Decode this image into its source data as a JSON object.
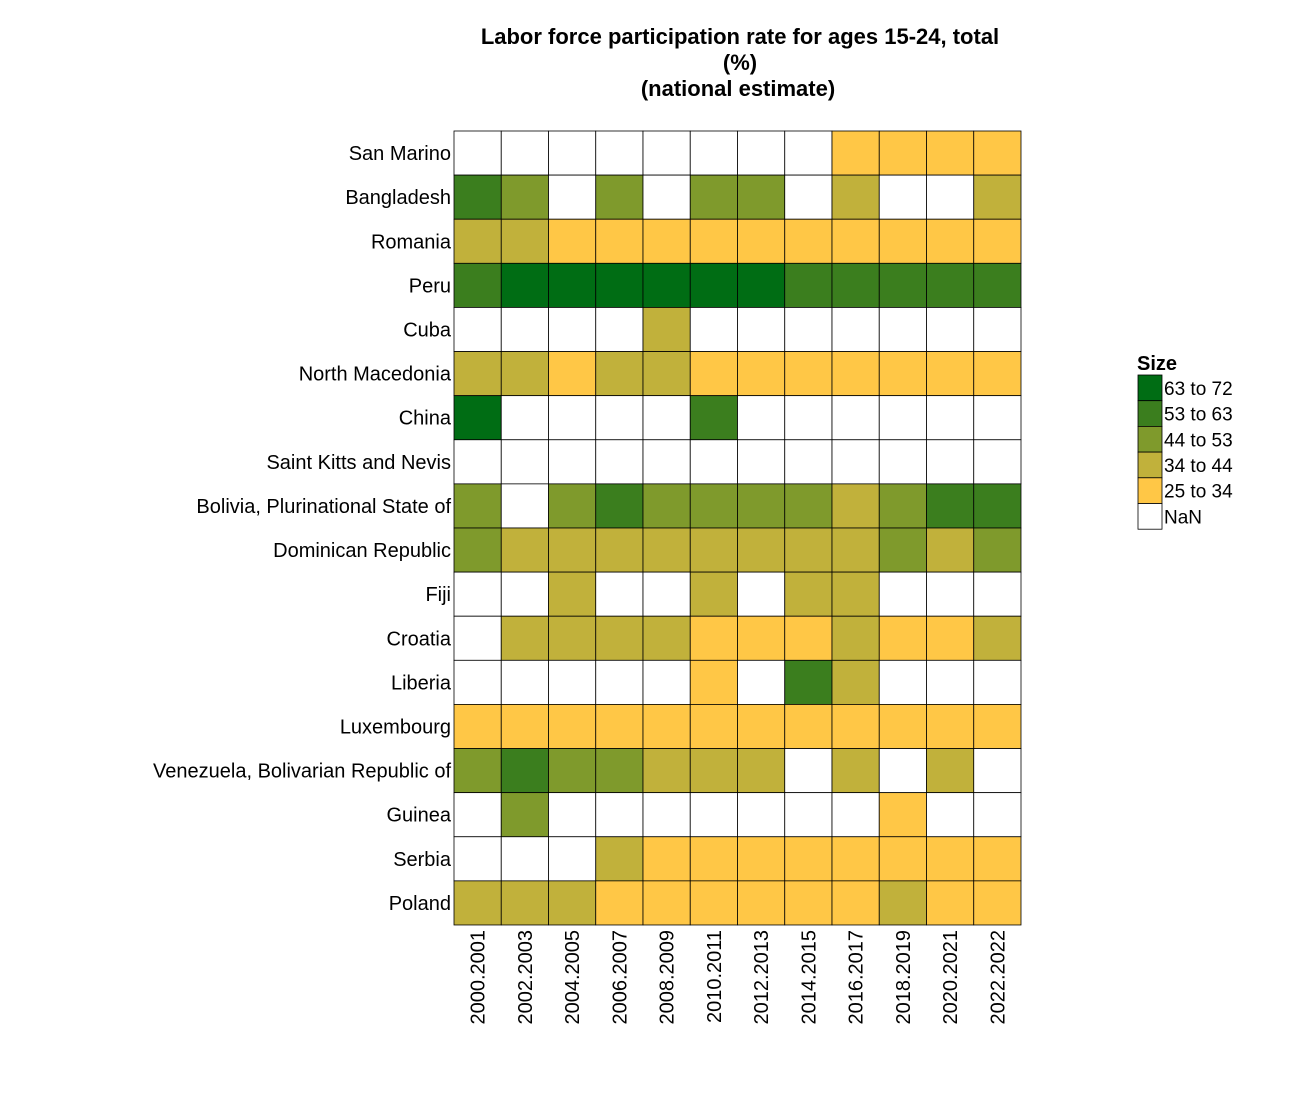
{
  "chart_data": {
    "type": "heatmap",
    "title_lines": [
      "Labor force participation rate for ages 15-24, total",
      "(%)",
      "(national estimate)"
    ],
    "x_categories": [
      "2000.2001",
      "2002.2003",
      "2004.2005",
      "2006.2007",
      "2008.2009",
      "2010.2011",
      "2012.2013",
      "2014.2015",
      "2016.2017",
      "2018.2019",
      "2020.2021",
      "2022.2022"
    ],
    "y_categories": [
      "San Marino",
      "Bangladesh",
      "Romania",
      "Peru",
      "Cuba",
      "North Macedonia",
      "China",
      "Saint Kitts and Nevis",
      "Bolivia, Plurinational State of",
      "Dominican Republic",
      "Fiji",
      "Croatia",
      "Liberia",
      "Luxembourg",
      "Venezuela, Bolivarian Republic of",
      "Guinea",
      "Serbia",
      "Poland"
    ],
    "legend": {
      "title": "Size",
      "bins": [
        {
          "label": "63 to 72",
          "color": "#006d14"
        },
        {
          "label": "53 to 63",
          "color": "#3b7e1e"
        },
        {
          "label": "44 to 53",
          "color": "#7f9a2c"
        },
        {
          "label": "34 to 44",
          "color": "#c1b13b"
        },
        {
          "label": "25 to 34",
          "color": "#ffc746"
        },
        {
          "label": "NaN",
          "color": "#ffffff"
        }
      ]
    },
    "values": [
      [
        null,
        null,
        null,
        null,
        null,
        null,
        null,
        null,
        30,
        30,
        30,
        30
      ],
      [
        58,
        48,
        null,
        48,
        null,
        48,
        48,
        null,
        39,
        null,
        null,
        39
      ],
      [
        39,
        39,
        30,
        30,
        30,
        30,
        30,
        30,
        30,
        30,
        30,
        30
      ],
      [
        58,
        67,
        67,
        67,
        67,
        67,
        67,
        58,
        58,
        58,
        58,
        58
      ],
      [
        null,
        null,
        null,
        null,
        39,
        null,
        null,
        null,
        null,
        null,
        null,
        null
      ],
      [
        39,
        39,
        30,
        39,
        39,
        30,
        30,
        30,
        30,
        30,
        30,
        30
      ],
      [
        67,
        null,
        null,
        null,
        null,
        58,
        null,
        null,
        null,
        null,
        null,
        null
      ],
      [
        null,
        null,
        null,
        null,
        null,
        null,
        null,
        null,
        null,
        null,
        null,
        null
      ],
      [
        48,
        null,
        48,
        58,
        48,
        48,
        48,
        48,
        39,
        48,
        58,
        58
      ],
      [
        48,
        39,
        39,
        39,
        39,
        39,
        39,
        39,
        39,
        48,
        39,
        48
      ],
      [
        null,
        null,
        39,
        null,
        null,
        39,
        null,
        39,
        39,
        null,
        null,
        null
      ],
      [
        null,
        39,
        39,
        39,
        39,
        30,
        30,
        30,
        39,
        30,
        30,
        39
      ],
      [
        null,
        null,
        null,
        null,
        null,
        30,
        null,
        58,
        39,
        null,
        null,
        null
      ],
      [
        30,
        30,
        30,
        30,
        30,
        30,
        30,
        30,
        30,
        30,
        30,
        30
      ],
      [
        48,
        58,
        48,
        48,
        39,
        39,
        39,
        null,
        39,
        null,
        39,
        null
      ],
      [
        null,
        48,
        null,
        null,
        null,
        null,
        null,
        null,
        null,
        30,
        null,
        null
      ],
      [
        null,
        null,
        null,
        39,
        30,
        30,
        30,
        30,
        30,
        30,
        30,
        30
      ],
      [
        39,
        39,
        39,
        30,
        30,
        30,
        30,
        30,
        30,
        39,
        30,
        30
      ]
    ]
  }
}
